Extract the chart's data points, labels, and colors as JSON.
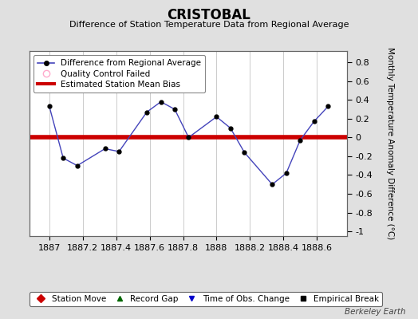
{
  "title": "CRISTOBAL",
  "subtitle": "Difference of Station Temperature Data from Regional Average",
  "ylabel_right": "Monthly Temperature Anomaly Difference (°C)",
  "watermark": "Berkeley Earth",
  "x_values": [
    1887.0,
    1887.083,
    1887.167,
    1887.333,
    1887.417,
    1887.583,
    1887.667,
    1887.75,
    1887.833,
    1888.0,
    1888.083,
    1888.167,
    1888.333,
    1888.417,
    1888.5,
    1888.583,
    1888.667
  ],
  "y_values": [
    0.33,
    -0.22,
    -0.3,
    -0.12,
    -0.15,
    0.27,
    0.38,
    0.3,
    0.0,
    0.22,
    0.1,
    -0.16,
    -0.5,
    -0.38,
    -0.03,
    0.17,
    0.33
  ],
  "bias_value": 0.0,
  "line_color": "#4444bb",
  "marker_color": "#000000",
  "bias_color": "#cc0000",
  "background_color": "#e0e0e0",
  "plot_bg_color": "#ffffff",
  "grid_color": "#cccccc",
  "ylim": [
    -1.05,
    0.92
  ],
  "xlim": [
    1886.88,
    1888.78
  ],
  "xtick_values": [
    1887.0,
    1887.2,
    1887.4,
    1887.6,
    1887.8,
    1888.0,
    1888.2,
    1888.4,
    1888.6
  ],
  "xtick_labels": [
    "1887",
    "1887.2",
    "1887.4",
    "1887.6",
    "1887.8",
    "1888",
    "1888.2",
    "1888.4",
    "1888.6"
  ],
  "yticks_right": [
    -1.0,
    -0.8,
    -0.6,
    -0.4,
    -0.2,
    0.0,
    0.2,
    0.4,
    0.6,
    0.8
  ],
  "ytick_labels": [
    "-1",
    "-0.8",
    "-0.6",
    "-0.4",
    "-0.2",
    "0",
    "0.2",
    "0.4",
    "0.6",
    "0.8"
  ],
  "legend_entries": [
    {
      "label": "Difference from Regional Average",
      "color": "#4444bb",
      "type": "line_marker"
    },
    {
      "label": "Quality Control Failed",
      "color": "#ffaacc",
      "type": "circle"
    },
    {
      "label": "Estimated Station Mean Bias",
      "color": "#cc0000",
      "type": "line"
    }
  ],
  "bottom_legend": [
    {
      "label": "Station Move",
      "color": "#cc0000",
      "marker": "D"
    },
    {
      "label": "Record Gap",
      "color": "#006600",
      "marker": "^"
    },
    {
      "label": "Time of Obs. Change",
      "color": "#0000cc",
      "marker": "v"
    },
    {
      "label": "Empirical Break",
      "color": "#000000",
      "marker": "s"
    }
  ]
}
